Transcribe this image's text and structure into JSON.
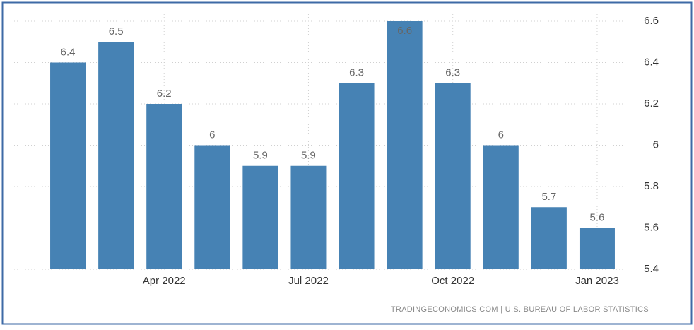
{
  "chart_data": {
    "type": "bar",
    "categories": [
      null,
      null,
      "Apr 2022",
      null,
      null,
      "Jul 2022",
      null,
      null,
      "Oct 2022",
      null,
      null,
      "Jan 2023"
    ],
    "values": [
      6.4,
      6.5,
      6.2,
      6,
      5.9,
      5.9,
      6.3,
      6.6,
      6.3,
      6,
      5.7,
      5.6
    ],
    "color": "#4682b4",
    "ylim": [
      5.4,
      6.6
    ],
    "yticks": [
      5.4,
      5.6,
      5.8,
      6,
      6.2,
      6.4,
      6.6
    ],
    "grid": true,
    "source": "TRADINGECONOMICS.COM | U.S. BUREAU OF LABOR STATISTICS"
  }
}
